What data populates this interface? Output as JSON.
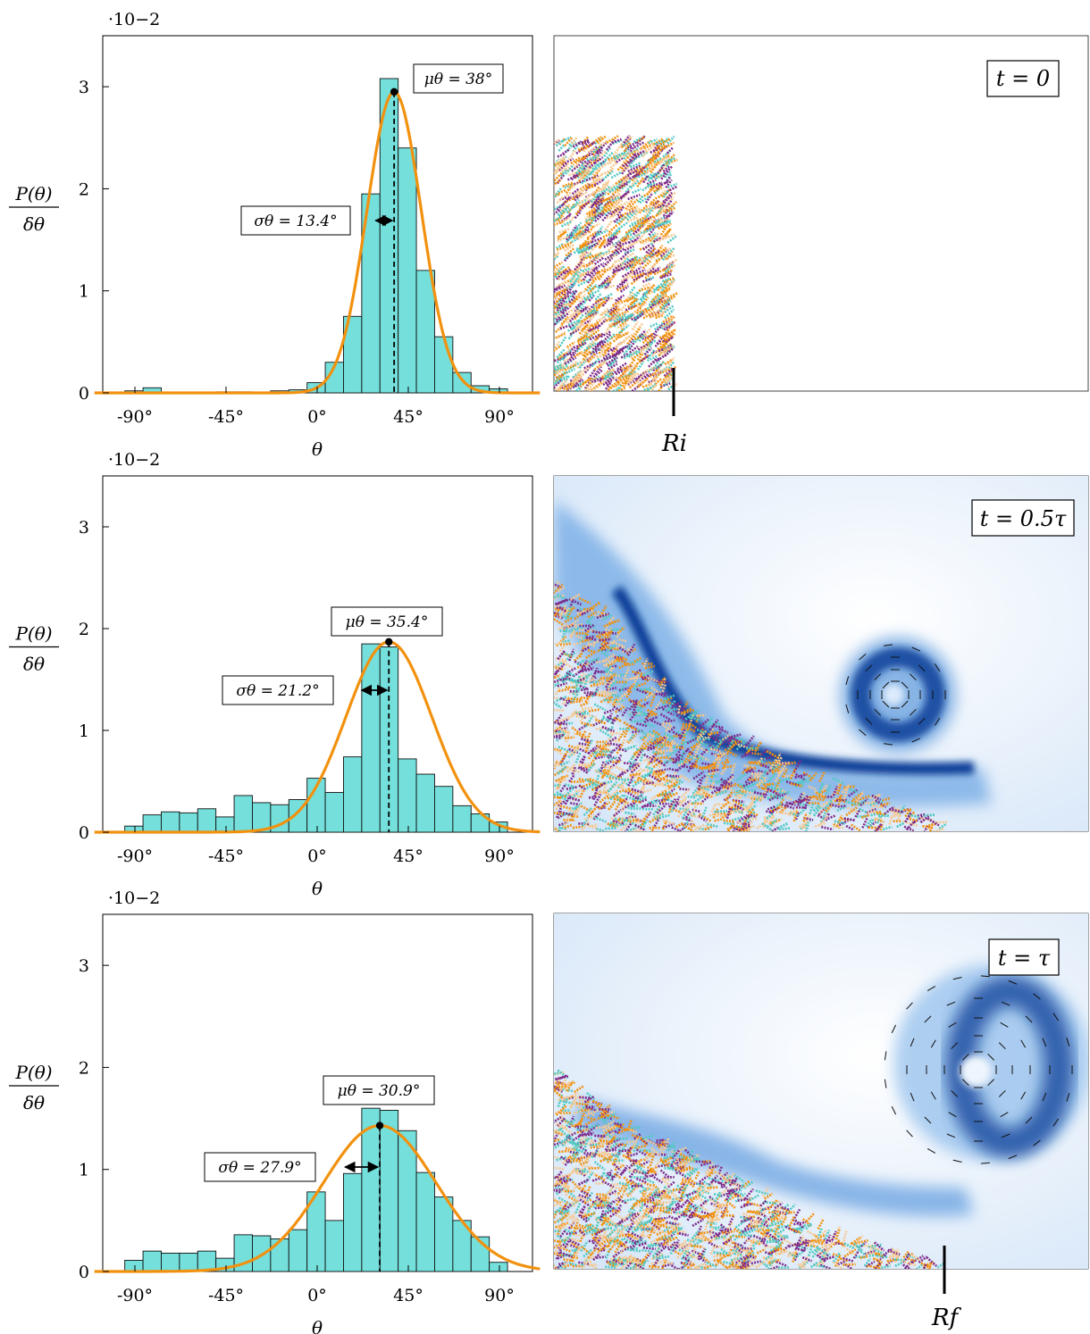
{
  "chart_data": [
    {
      "type": "bar",
      "scale_note": "·10−2",
      "ylabel_num": "P(θ)",
      "ylabel_den": "δθ",
      "xlabel": "θ",
      "xtick_labels": [
        "-90°",
        "-45°",
        "0°",
        "45°",
        "90°"
      ],
      "ytick_labels": [
        "0",
        "1",
        "2",
        "3"
      ],
      "xlim": [
        -110,
        110
      ],
      "ylim": [
        0,
        3.5
      ],
      "bin_width": 9,
      "bin_starts": [
        -95,
        -86,
        -77,
        -68,
        -59,
        -50,
        -41,
        -32,
        -23,
        -14,
        -5,
        4,
        13,
        22,
        31,
        40,
        49,
        58,
        67,
        76,
        85
      ],
      "values": [
        0.02,
        0.05,
        0,
        0,
        0,
        0.01,
        0.01,
        0,
        0.02,
        0.03,
        0.1,
        0.3,
        0.75,
        1.95,
        3.08,
        2.4,
        1.2,
        0.55,
        0.2,
        0.07,
        0.04
      ],
      "fit": {
        "mu": 38,
        "sigma": 13.4,
        "peak": 2.95
      },
      "mu_label": "μθ = 38°",
      "sigma_label": "σθ = 13.4°",
      "snapshot_label": "t = 0",
      "marker_label": "Ri"
    },
    {
      "type": "bar",
      "scale_note": "·10−2",
      "ylabel_num": "P(θ)",
      "ylabel_den": "δθ",
      "xlabel": "θ",
      "xtick_labels": [
        "-90°",
        "-45°",
        "0°",
        "45°",
        "90°"
      ],
      "ytick_labels": [
        "0",
        "1",
        "2",
        "3"
      ],
      "xlim": [
        -110,
        110
      ],
      "ylim": [
        0,
        3.5
      ],
      "bin_width": 9,
      "bin_starts": [
        -95,
        -86,
        -77,
        -68,
        -59,
        -50,
        -41,
        -32,
        -23,
        -14,
        -5,
        4,
        13,
        22,
        31,
        40,
        49,
        58,
        67,
        76,
        85
      ],
      "values": [
        0.06,
        0.17,
        0.2,
        0.19,
        0.23,
        0.15,
        0.36,
        0.29,
        0.27,
        0.32,
        0.53,
        0.39,
        0.74,
        1.85,
        1.82,
        0.72,
        0.57,
        0.45,
        0.26,
        0.18,
        0.1
      ],
      "fit": {
        "mu": 35.4,
        "sigma": 21.2,
        "peak": 1.87
      },
      "mu_label": "μθ = 35.4°",
      "sigma_label": "σθ = 21.2°",
      "snapshot_label": "t = 0.5τ",
      "marker_label": ""
    },
    {
      "type": "bar",
      "scale_note": "·10−2",
      "ylabel_num": "P(θ)",
      "ylabel_den": "δθ",
      "xlabel": "θ",
      "xtick_labels": [
        "-90°",
        "-45°",
        "0°",
        "45°",
        "90°"
      ],
      "ytick_labels": [
        "0",
        "1",
        "2",
        "3"
      ],
      "xlim": [
        -110,
        110
      ],
      "ylim": [
        0,
        3.5
      ],
      "bin_width": 9,
      "bin_starts": [
        -95,
        -86,
        -77,
        -68,
        -59,
        -50,
        -41,
        -32,
        -23,
        -14,
        -5,
        4,
        13,
        22,
        31,
        40,
        49,
        58,
        67,
        76,
        85
      ],
      "values": [
        0.11,
        0.2,
        0.18,
        0.18,
        0.2,
        0.13,
        0.36,
        0.35,
        0.32,
        0.41,
        0.78,
        0.5,
        0.96,
        1.6,
        1.58,
        1.38,
        0.97,
        0.73,
        0.5,
        0.34,
        0.09
      ],
      "fit": {
        "mu": 30.9,
        "sigma": 27.9,
        "peak": 1.43
      },
      "mu_label": "μθ = 30.9°",
      "sigma_label": "σθ = 27.9°",
      "snapshot_label": "t = τ",
      "marker_label": "Rf"
    }
  ],
  "colors": {
    "bar_fill": "#74dfdb",
    "fit_line": "#f2910e",
    "flow_dark": "#0b3f99",
    "flow_light": "#e3eefb",
    "particle_palette": [
      "#f2910e",
      "#7d2b8b",
      "#4fc9c3",
      "#f6c890"
    ]
  }
}
